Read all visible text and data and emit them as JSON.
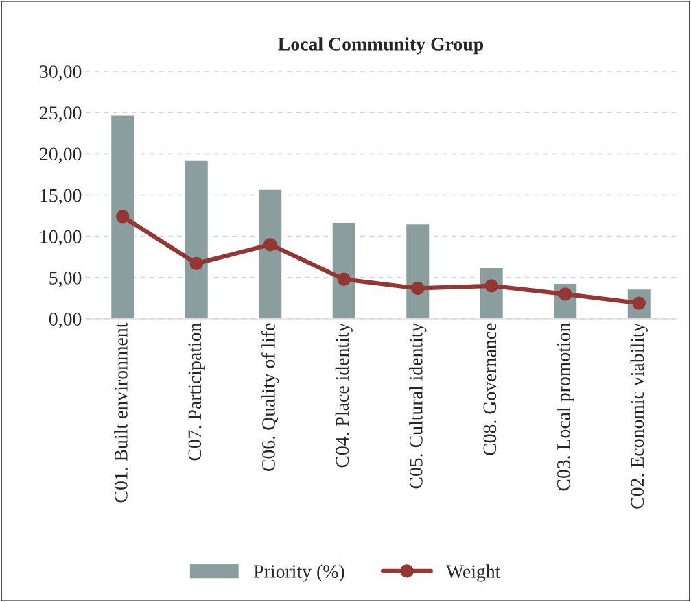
{
  "chart_data": {
    "type": "bar",
    "title": "Local Community Group",
    "categories": [
      "C01. Built environment",
      "C07. Participation",
      "C06. Quality of life",
      "C04. Place identity",
      "C05. Cultural identity",
      "C08. Governance",
      "C03. Local promotion",
      "C02. Economic viability"
    ],
    "series": [
      {
        "name": "Priority (%)",
        "color": "#8a9e9e",
        "values": [
          24.7,
          19.2,
          15.7,
          11.7,
          11.5,
          6.2,
          4.3,
          3.6
        ]
      },
      {
        "name": "Weight",
        "type": "line",
        "color": "#943634",
        "marker": "circle",
        "values": [
          12.4,
          6.7,
          9.0,
          4.8,
          3.7,
          4.0,
          3.0,
          1.9
        ]
      }
    ],
    "ylim": [
      0,
      30
    ],
    "yticks": [
      {
        "value": 0,
        "label": "0,00"
      },
      {
        "value": 5,
        "label": "5,00"
      },
      {
        "value": 10,
        "label": "10,00"
      },
      {
        "value": 15,
        "label": "15,00"
      },
      {
        "value": 20,
        "label": "20,00"
      },
      {
        "value": 25,
        "label": "25,00"
      },
      {
        "value": 30,
        "label": "30,00"
      }
    ],
    "grid": "y",
    "legend": "bottom"
  }
}
